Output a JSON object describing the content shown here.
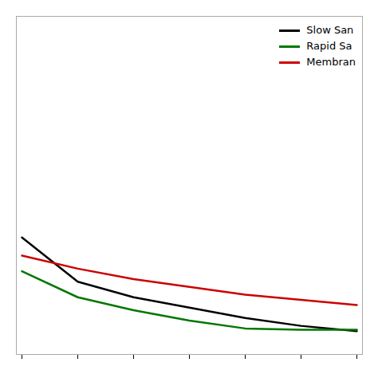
{
  "chart_data": {
    "type": "line",
    "x": [
      0,
      1,
      2,
      3,
      4,
      5,
      6
    ],
    "series": [
      {
        "name": "Slow San",
        "color": "#000000",
        "values": [
          5.5,
          3.8,
          3.2,
          2.8,
          2.4,
          2.1,
          1.9
        ]
      },
      {
        "name": "Rapid Sa",
        "color": "#007700",
        "values": [
          4.2,
          3.2,
          2.7,
          2.3,
          2.0,
          1.95,
          1.95
        ]
      },
      {
        "name": "Membran",
        "color": "#cc0000",
        "values": [
          4.8,
          4.3,
          3.9,
          3.6,
          3.3,
          3.1,
          2.9
        ]
      }
    ],
    "xlim": [
      -0.1,
      6.1
    ],
    "ylim": [
      1.0,
      14.0
    ],
    "xticks": [
      0,
      1,
      2,
      3,
      4,
      5,
      6
    ],
    "legend": "upper right",
    "tick_labels": false
  }
}
